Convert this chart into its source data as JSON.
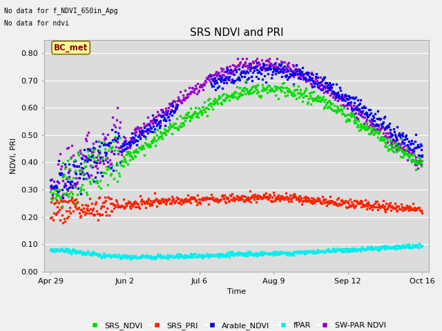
{
  "title": "SRS NDVI and PRI",
  "xlabel": "Time",
  "ylabel": "NDVI, PRI",
  "note_line1": "No data for f_NDVI_650in_Apg",
  "note_line2": "No data for ndvi",
  "box_label": "BC_met",
  "ylim": [
    0.0,
    0.85
  ],
  "yticks": [
    0.0,
    0.1,
    0.2,
    0.3,
    0.4,
    0.5,
    0.6,
    0.7,
    0.8
  ],
  "xtick_labels": [
    "Apr 29",
    "Jun 2",
    "Jul 6",
    "Aug 9",
    "Sep 12",
    "Oct 16"
  ],
  "legend_entries": [
    "SRS_NDVI",
    "SRS_PRI",
    "Arable_NDVI",
    "fPAR",
    "SW-PAR NDVI"
  ],
  "colors": {
    "SRS_NDVI": "#00dd00",
    "SRS_PRI": "#ff2200",
    "Arable_NDVI": "#0000ee",
    "fPAR": "#00eeee",
    "SW-PAR NDVI": "#9900cc"
  },
  "background_color": "#dcdcdc",
  "fig_facecolor": "#f0f0f0",
  "title_fontsize": 11,
  "axis_fontsize": 8,
  "legend_fontsize": 8
}
